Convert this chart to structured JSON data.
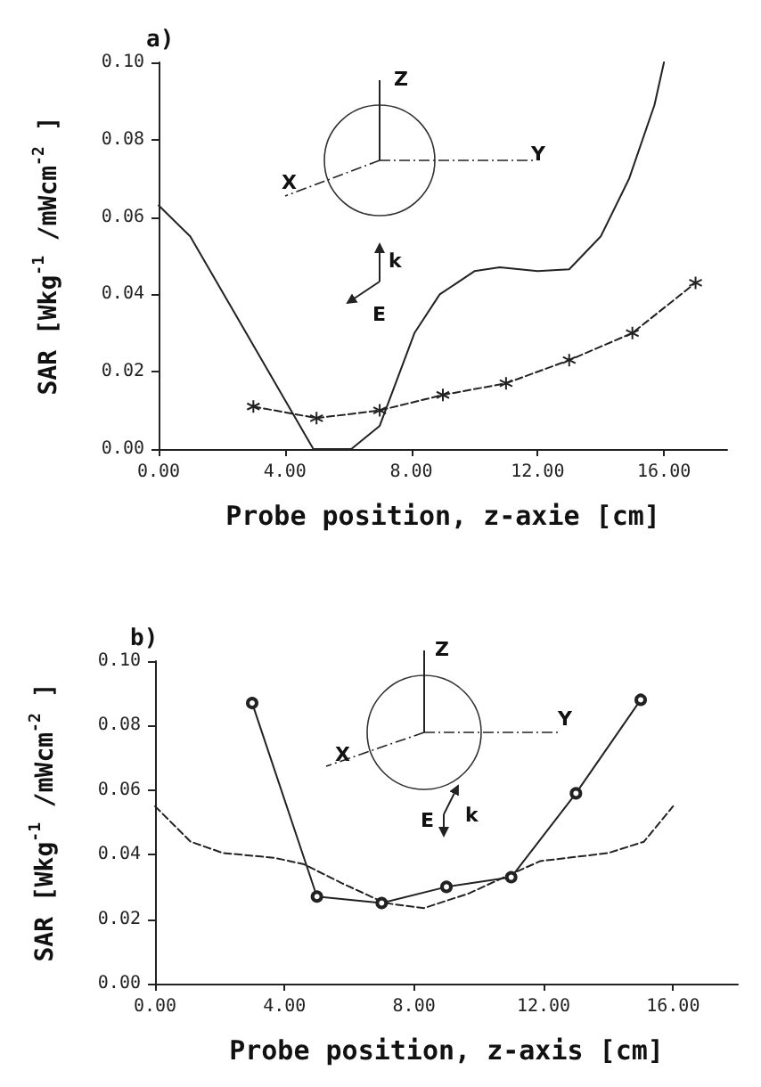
{
  "chart_data": [
    {
      "type": "line",
      "title": "a)",
      "xlabel": "Probe position, z-axie [cm]",
      "ylabel": "SAR [Wkg$^{-1}$ /mWcm$^{-2}$ ]",
      "xlim": [
        0,
        18
      ],
      "ylim": [
        0,
        0.1
      ],
      "xticks": [
        {
          "value": 0,
          "label": "0.00"
        },
        {
          "value": 4,
          "label": "4.00"
        },
        {
          "value": 8,
          "label": "8.00"
        },
        {
          "value": 12,
          "label": "12.00"
        },
        {
          "value": 16,
          "label": "16.00"
        }
      ],
      "yticks": [
        {
          "value": 0,
          "label": "0.00"
        },
        {
          "value": 0.02,
          "label": "0.02"
        },
        {
          "value": 0.04,
          "label": "0.04"
        },
        {
          "value": 0.06,
          "label": "0.06"
        },
        {
          "value": 0.08,
          "label": "0.08"
        },
        {
          "value": 0.1,
          "label": "0.10"
        }
      ],
      "annotations": [
        "Z",
        "Y",
        "X",
        "k",
        "E"
      ],
      "series": [
        {
          "color": "#222222",
          "marker": "none",
          "line_style": "solid",
          "x": [
            0,
            1,
            4.9,
            6.1,
            7,
            8.1,
            8.9,
            10,
            10.8,
            12,
            13,
            14,
            14.9,
            15.7,
            16
          ],
          "values": [
            0.063,
            0.055,
            0,
            0,
            0.006,
            0.03,
            0.04,
            0.046,
            0.047,
            0.046,
            0.0465,
            0.055,
            0.07,
            0.089,
            0.1
          ]
        },
        {
          "color": "#222222",
          "marker": "star",
          "line_style": "dashed",
          "x": [
            3,
            5,
            7,
            9,
            11,
            13,
            15,
            17
          ],
          "values": [
            0.011,
            0.008,
            0.01,
            0.014,
            0.017,
            0.023,
            0.03,
            0.043
          ]
        }
      ]
    },
    {
      "type": "line",
      "title": "b)",
      "xlabel": "Probe position, z-axis [cm]",
      "ylabel": "SAR [Wkg$^{-1}$ /mWcm$^{-2}$ ]",
      "xlim": [
        0,
        18
      ],
      "ylim": [
        0,
        0.1
      ],
      "xticks": [
        {
          "value": 0,
          "label": "0.00"
        },
        {
          "value": 4,
          "label": "4.00"
        },
        {
          "value": 8,
          "label": "8.00"
        },
        {
          "value": 12,
          "label": "12.00"
        },
        {
          "value": 16,
          "label": "16.00"
        }
      ],
      "yticks": [
        {
          "value": 0,
          "label": "0.00"
        },
        {
          "value": 0.02,
          "label": "0.02"
        },
        {
          "value": 0.04,
          "label": "0.04"
        },
        {
          "value": 0.06,
          "label": "0.06"
        },
        {
          "value": 0.08,
          "label": "0.08"
        },
        {
          "value": 0.1,
          "label": "0.10"
        }
      ],
      "annotations": [
        "Z",
        "Y",
        "X",
        "k",
        "E"
      ],
      "series": [
        {
          "color": "#222222",
          "marker": "none",
          "line_style": "dashed",
          "x": [
            0,
            1.1,
            2.1,
            3.7,
            4.6,
            5.8,
            7.1,
            8.3,
            9.7,
            11,
            11.9,
            14,
            15.1,
            16
          ],
          "values": [
            0.055,
            0.044,
            0.0405,
            0.039,
            0.037,
            0.031,
            0.025,
            0.0234,
            0.028,
            0.034,
            0.038,
            0.0405,
            0.044,
            0.055
          ]
        },
        {
          "color": "#222222",
          "marker": "circle",
          "line_style": "solid",
          "x": [
            3,
            5,
            7,
            9,
            11,
            13,
            15
          ],
          "values": [
            0.087,
            0.027,
            0.025,
            0.03,
            0.033,
            0.059,
            0.088
          ]
        }
      ]
    }
  ]
}
